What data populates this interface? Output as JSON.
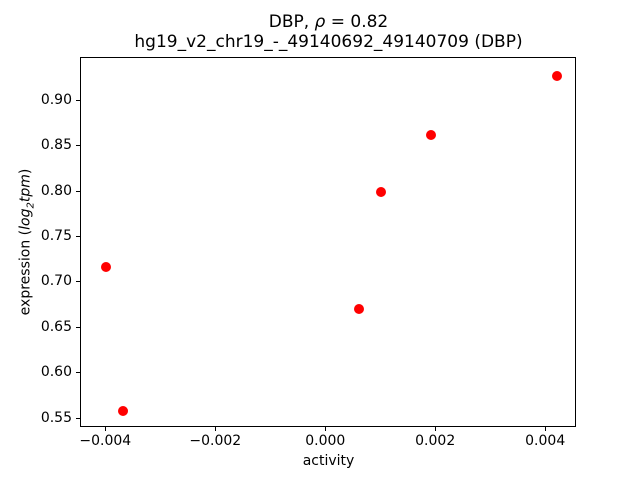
{
  "figure": {
    "background_color": "#ffffff",
    "title": {
      "prefix": "DBP, ",
      "rho": "ρ",
      "suffix": " = 0.82"
    },
    "subtitle": "hg19_v2_chr19_-_49140692_49140709 (DBP)"
  },
  "axes_text": {
    "xlabel": "activity",
    "ylabel_prefix": "expression (",
    "ylabel_log": "log",
    "ylabel_sub": "2",
    "ylabel_tpm": "tpm",
    "ylabel_suffix": ")"
  },
  "chart_data": {
    "type": "scatter",
    "title": "DBP, ρ = 0.82",
    "subtitle": "hg19_v2_chr19_-_49140692_49140709 (DBP)",
    "xlabel": "activity",
    "ylabel": "expression (log₂tpm)",
    "marker_color": "#ff0000",
    "marker_size_px": 10,
    "grid": false,
    "legend": null,
    "xlim": [
      -0.00446,
      0.00456
    ],
    "ylim": [
      0.5395,
      0.9475
    ],
    "x_ticks": [
      {
        "value": -0.004,
        "label": "−0.004"
      },
      {
        "value": -0.002,
        "label": "−0.002"
      },
      {
        "value": 0.0,
        "label": "0.000"
      },
      {
        "value": 0.002,
        "label": "0.002"
      },
      {
        "value": 0.004,
        "label": "0.004"
      }
    ],
    "y_ticks": [
      {
        "value": 0.55,
        "label": "0.55"
      },
      {
        "value": 0.6,
        "label": "0.60"
      },
      {
        "value": 0.65,
        "label": "0.65"
      },
      {
        "value": 0.7,
        "label": "0.70"
      },
      {
        "value": 0.75,
        "label": "0.75"
      },
      {
        "value": 0.8,
        "label": "0.80"
      },
      {
        "value": 0.85,
        "label": "0.85"
      },
      {
        "value": 0.9,
        "label": "0.90"
      }
    ],
    "points": [
      {
        "x": -0.004,
        "y": 0.717
      },
      {
        "x": -0.0037,
        "y": 0.558
      },
      {
        "x": 0.0006,
        "y": 0.671
      },
      {
        "x": 0.001,
        "y": 0.8
      },
      {
        "x": 0.0019,
        "y": 0.863
      },
      {
        "x": 0.0042,
        "y": 0.928
      }
    ]
  }
}
